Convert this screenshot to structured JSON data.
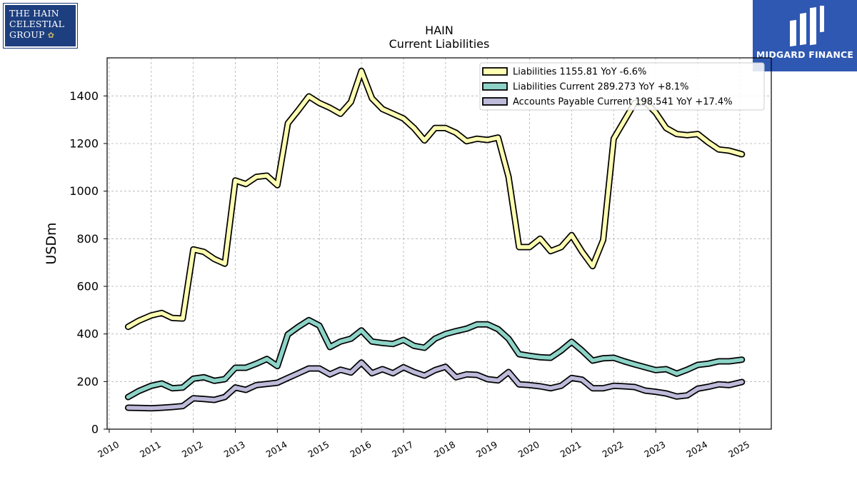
{
  "logos": {
    "left_lines": [
      "THE HAIN",
      "CELESTIAL",
      "GROUP"
    ],
    "right_name": "MIDGARD FINANCE"
  },
  "chart_data": {
    "type": "line",
    "title": "HAIN",
    "subtitle": "Current  Liabilities",
    "ylabel": "USDm",
    "xlabel": "",
    "xlim": [
      2009.95,
      2025.75
    ],
    "ylim": [
      0,
      1560
    ],
    "yticks": [
      0,
      200,
      400,
      600,
      800,
      1000,
      1200,
      1400
    ],
    "xticks": [
      "2010",
      "2011",
      "2012",
      "2013",
      "2014",
      "2015",
      "2016",
      "2017",
      "2018",
      "2019",
      "2020",
      "2021",
      "2022",
      "2023",
      "2024",
      "2025"
    ],
    "grid": true,
    "legend_position": "top-right",
    "colors": {
      "Liabilities": "#ffffb3",
      "Liabilities Current": "#8dd3c7",
      "Accounts Payable Current": "#bebada"
    },
    "series": [
      {
        "name": "Liabilities",
        "legend_label": "Liabilities  1155.81 YoY -6.6%",
        "x": [
          2010.45,
          2010.7,
          2011.0,
          2011.25,
          2011.5,
          2011.75,
          2012.0,
          2012.25,
          2012.5,
          2012.75,
          2013.0,
          2013.25,
          2013.5,
          2013.75,
          2014.0,
          2014.25,
          2014.5,
          2014.75,
          2015.0,
          2015.25,
          2015.5,
          2015.75,
          2016.0,
          2016.25,
          2016.5,
          2016.75,
          2017.0,
          2017.25,
          2017.5,
          2017.75,
          2018.0,
          2018.25,
          2018.5,
          2018.75,
          2019.0,
          2019.25,
          2019.5,
          2019.75,
          2020.0,
          2020.25,
          2020.5,
          2020.75,
          2021.0,
          2021.25,
          2021.5,
          2021.75,
          2022.0,
          2022.25,
          2022.5,
          2022.75,
          2023.0,
          2023.25,
          2023.5,
          2023.75,
          2024.0,
          2024.25,
          2024.5,
          2024.75,
          2025.05
        ],
        "values": [
          430,
          455,
          478,
          488,
          467,
          465,
          755,
          745,
          715,
          695,
          1045,
          1030,
          1060,
          1065,
          1025,
          1285,
          1340,
          1398,
          1370,
          1350,
          1325,
          1375,
          1505,
          1390,
          1345,
          1325,
          1305,
          1265,
          1213,
          1265,
          1265,
          1245,
          1210,
          1220,
          1215,
          1225,
          1060,
          765,
          765,
          800,
          748,
          765,
          815,
          745,
          685,
          795,
          1220,
          1295,
          1370,
          1375,
          1330,
          1265,
          1240,
          1235,
          1240,
          1205,
          1175,
          1170,
          1155
        ]
      },
      {
        "name": "Liabilities Current",
        "legend_label": "Liabilities Current  289.273 YoY +8.1%",
        "x": [
          2010.45,
          2010.7,
          2011.0,
          2011.25,
          2011.5,
          2011.75,
          2012.0,
          2012.25,
          2012.5,
          2012.75,
          2013.0,
          2013.25,
          2013.5,
          2013.75,
          2014.0,
          2014.25,
          2014.5,
          2014.75,
          2015.0,
          2015.25,
          2015.5,
          2015.75,
          2016.0,
          2016.25,
          2016.5,
          2016.75,
          2017.0,
          2017.25,
          2017.5,
          2017.75,
          2018.0,
          2018.25,
          2018.5,
          2018.75,
          2019.0,
          2019.25,
          2019.5,
          2019.75,
          2020.0,
          2020.25,
          2020.5,
          2020.75,
          2021.0,
          2021.25,
          2021.5,
          2021.75,
          2022.0,
          2022.25,
          2022.5,
          2022.75,
          2023.0,
          2023.25,
          2023.5,
          2023.75,
          2024.0,
          2024.25,
          2024.5,
          2024.75,
          2025.05
        ],
        "values": [
          135,
          160,
          182,
          192,
          172,
          175,
          212,
          218,
          203,
          210,
          258,
          258,
          275,
          295,
          265,
          398,
          430,
          458,
          435,
          345,
          368,
          380,
          415,
          368,
          362,
          358,
          375,
          350,
          342,
          380,
          400,
          412,
          422,
          440,
          440,
          420,
          380,
          315,
          308,
          302,
          300,
          330,
          367,
          330,
          288,
          298,
          300,
          285,
          272,
          260,
          248,
          252,
          233,
          250,
          270,
          275,
          285,
          285,
          292
        ]
      },
      {
        "name": "Accounts Payable Current",
        "legend_label": "Accounts Payable Current  198.541 YoY +17.4%",
        "x": [
          2010.45,
          2010.7,
          2011.0,
          2011.25,
          2011.5,
          2011.75,
          2012.0,
          2012.25,
          2012.5,
          2012.75,
          2013.0,
          2013.25,
          2013.5,
          2013.75,
          2014.0,
          2014.25,
          2014.5,
          2014.75,
          2015.0,
          2015.25,
          2015.5,
          2015.75,
          2016.0,
          2016.25,
          2016.5,
          2016.75,
          2017.0,
          2017.25,
          2017.5,
          2017.75,
          2018.0,
          2018.25,
          2018.5,
          2018.75,
          2019.0,
          2019.25,
          2019.5,
          2019.75,
          2020.0,
          2020.25,
          2020.5,
          2020.75,
          2021.0,
          2021.25,
          2021.5,
          2021.75,
          2022.0,
          2022.25,
          2022.5,
          2022.75,
          2023.0,
          2023.25,
          2023.5,
          2023.75,
          2024.0,
          2024.25,
          2024.5,
          2024.75,
          2025.05
        ],
        "values": [
          90,
          89,
          88,
          90,
          93,
          97,
          130,
          127,
          123,
          135,
          175,
          165,
          185,
          190,
          195,
          215,
          235,
          255,
          255,
          230,
          250,
          238,
          280,
          235,
          252,
          235,
          260,
          240,
          225,
          248,
          262,
          218,
          230,
          228,
          210,
          205,
          240,
          188,
          185,
          180,
          172,
          182,
          215,
          208,
          172,
          172,
          182,
          180,
          177,
          162,
          157,
          150,
          137,
          142,
          170,
          178,
          188,
          185,
          198
        ]
      }
    ]
  }
}
